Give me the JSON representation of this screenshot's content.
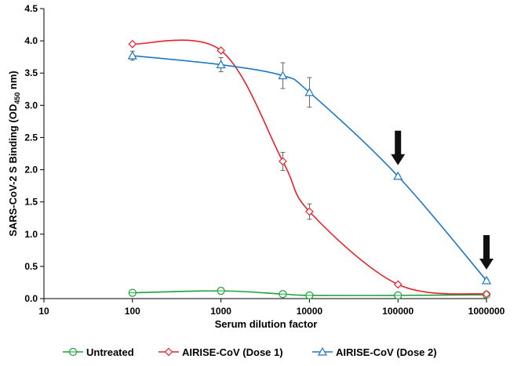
{
  "chart_data": {
    "type": "line",
    "xscale": "log",
    "xlim": [
      10,
      1000000
    ],
    "ylim": [
      0,
      4.5
    ],
    "x_ticks": [
      "10",
      "100",
      "1000",
      "10000",
      "100000",
      "1000000"
    ],
    "y_ticks": [
      "0.0",
      "0.5",
      "1.0",
      "1.5",
      "2.0",
      "2.5",
      "3.0",
      "3.5",
      "4.0",
      "4.5"
    ],
    "xlabel": "Serum dilution factor",
    "ylabel": {
      "main": "SARS-CoV-2 S Binding (OD",
      "subscript": "450",
      "suffix": " nm)"
    },
    "grid": false,
    "legend_position": "bottom",
    "series": [
      {
        "name": "Untreated",
        "color": "#1aa33a",
        "marker": "circle",
        "x": [
          100,
          1000,
          5000,
          10000,
          100000,
          1000000
        ],
        "y": [
          0.09,
          0.12,
          0.07,
          0.05,
          0.05,
          0.06
        ],
        "err": [
          0.03,
          0.05,
          0.02,
          0.02,
          0.01,
          0.01
        ]
      },
      {
        "name": "AIRISE-CoV (Dose 1)",
        "color": "#e8202a",
        "marker": "diamond",
        "x": [
          100,
          1000,
          5000,
          10000,
          100000,
          1000000
        ],
        "y": [
          3.95,
          3.85,
          2.13,
          1.35,
          0.22,
          0.07
        ],
        "err": [
          0.02,
          0.02,
          0.14,
          0.12,
          0.02,
          0.01
        ]
      },
      {
        "name": "AIRISE-CoV (Dose 2)",
        "color": "#1f77c4",
        "marker": "triangle",
        "x": [
          100,
          1000,
          5000,
          10000,
          100000,
          1000000
        ],
        "y": [
          3.77,
          3.63,
          3.46,
          3.2,
          1.9,
          0.28
        ],
        "err": [
          0.07,
          0.11,
          0.2,
          0.23,
          0.02,
          0.02
        ]
      }
    ],
    "annotations": [
      {
        "type": "arrow",
        "x": 100000,
        "label": ""
      },
      {
        "type": "arrow",
        "x": 1000000,
        "label": ""
      }
    ]
  }
}
